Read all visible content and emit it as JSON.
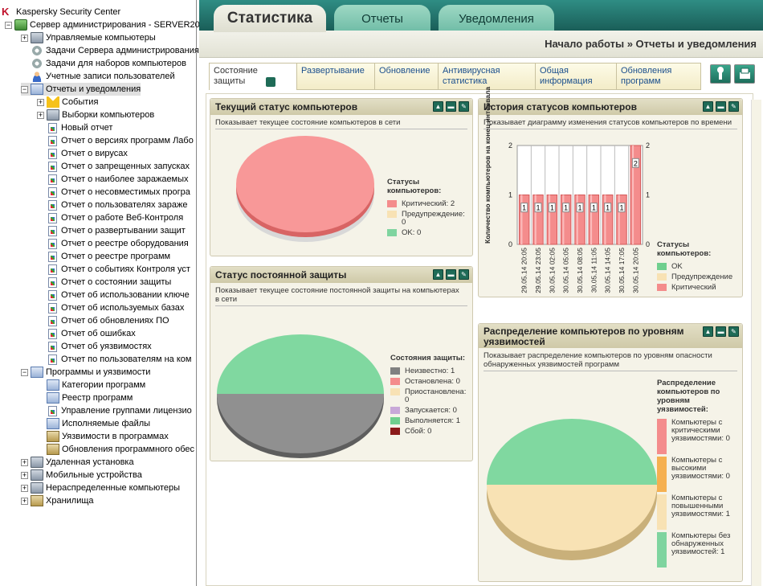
{
  "tree": {
    "app_title": "Kaspersky Security Center",
    "server": "Сервер администрирования - SERVER20",
    "nodes": [
      {
        "label": "Управляемые компьютеры",
        "icon": "computers-icon",
        "exp": "+"
      },
      {
        "label": "Задачи Сервера администрирования",
        "icon": "gear-icon"
      },
      {
        "label": "Задачи для наборов компьютеров",
        "icon": "gear-icon"
      },
      {
        "label": "Учетные записи пользователей",
        "icon": "user-icon"
      },
      {
        "label": "Отчеты и уведомления",
        "icon": "reports-icon",
        "exp": "-"
      },
      {
        "label": "События",
        "icon": "warning-icon",
        "exp": "+"
      },
      {
        "label": "Выборки компьютеров",
        "icon": "computers-icon",
        "exp": "+"
      },
      {
        "label": "Новый отчет",
        "icon": "report-icon"
      },
      {
        "label": "Отчет о версиях программ Лабо",
        "icon": "report-icon"
      },
      {
        "label": "Отчет о вирусах",
        "icon": "report-icon"
      },
      {
        "label": "Отчет о запрещенных запусках",
        "icon": "report-icon"
      },
      {
        "label": "Отчет о наиболее заражаемых",
        "icon": "report-icon"
      },
      {
        "label": "Отчет о несовместимых програ",
        "icon": "report-icon"
      },
      {
        "label": "Отчет о пользователях зараже",
        "icon": "report-icon"
      },
      {
        "label": "Отчет о работе Веб-Контроля",
        "icon": "report-icon"
      },
      {
        "label": "Отчет о развертывании защит",
        "icon": "report-icon"
      },
      {
        "label": "Отчет о реестре оборудования",
        "icon": "report-icon"
      },
      {
        "label": "Отчет о реестре программ",
        "icon": "report-icon"
      },
      {
        "label": "Отчет о событиях Контроля уст",
        "icon": "report-icon"
      },
      {
        "label": "Отчет о состоянии защиты",
        "icon": "report-icon"
      },
      {
        "label": "Отчет об использовании ключе",
        "icon": "report-icon"
      },
      {
        "label": "Отчет об используемых базах",
        "icon": "report-icon"
      },
      {
        "label": "Отчет об обновлениях ПО",
        "icon": "report-icon"
      },
      {
        "label": "Отчет об ошибках",
        "icon": "report-icon"
      },
      {
        "label": "Отчет об уязвимостях",
        "icon": "report-icon"
      },
      {
        "label": "Отчет по пользователям на ком",
        "icon": "report-icon"
      },
      {
        "label": "Программы и уязвимости",
        "icon": "apps-icon",
        "exp": "-"
      },
      {
        "label": "Категории программ",
        "icon": "category-icon"
      },
      {
        "label": "Реестр программ",
        "icon": "registry-icon"
      },
      {
        "label": "Управление группами лицензио",
        "icon": "license-icon"
      },
      {
        "label": "Исполняемые файлы",
        "icon": "exe-icon"
      },
      {
        "label": "Уязвимости в программах",
        "icon": "vuln-icon"
      },
      {
        "label": "Обновления программного обес",
        "icon": "update-icon"
      },
      {
        "label": "Удаленная установка",
        "icon": "install-icon",
        "exp": "+"
      },
      {
        "label": "Мобильные устройства",
        "icon": "mobile-icon",
        "exp": "+"
      },
      {
        "label": "Нераспределенные компьютеры",
        "icon": "computers-icon",
        "exp": "+"
      },
      {
        "label": "Хранилища",
        "icon": "storage-icon",
        "exp": "+"
      }
    ]
  },
  "main": {
    "tabs": [
      "Статистика",
      "Отчеты",
      "Уведомления"
    ],
    "breadcrumb": "Начало работы » Отчеты и уведомления",
    "subtabs": [
      "Состояние защиты",
      "Развертывание",
      "Обновление",
      "Антивирусная статистика",
      "Общая информация",
      "Обновления программ"
    ]
  },
  "panels": {
    "status": {
      "title": "Текущий статус компьютеров",
      "desc": "Показывает текущее состояние компьютеров в сети",
      "legend_title": "Статусы компьютеров:",
      "items": [
        {
          "label": "Критический: 2",
          "color": "#f48c8c"
        },
        {
          "label": "Предупреждение: 0",
          "color": "#f8e2b4"
        },
        {
          "label": "OK: 0",
          "color": "#7fd49f"
        }
      ]
    },
    "rtp": {
      "title": "Статус постоянной защиты",
      "desc": "Показывает текущее состояние постоянной защиты на компьютерах в сети",
      "legend_title": "Состояния защиты:",
      "items": [
        {
          "label": "Неизвестно: 1",
          "color": "#808080"
        },
        {
          "label": "Остановлена: 0",
          "color": "#f48c8c"
        },
        {
          "label": "Приостановлена: 0",
          "color": "#f8e2b4"
        },
        {
          "label": "Запускается: 0",
          "color": "#c8a8d8"
        },
        {
          "label": "Выполняется: 1",
          "color": "#6fcf8e"
        },
        {
          "label": "Сбой: 0",
          "color": "#8b1a1a"
        }
      ]
    },
    "history": {
      "title": "История статусов компьютеров",
      "desc": "Показывает диаграмму изменения статусов компьютеров по времени",
      "legend_title": "Статусы компьютеров:",
      "items": [
        {
          "label": "OK",
          "color": "#6fcf8e"
        },
        {
          "label": "Предупреждение",
          "color": "#f8e2b4"
        },
        {
          "label": "Критический",
          "color": "#f48c8c"
        }
      ]
    },
    "vuln": {
      "title": "Распределение компьютеров по уровням уязвимостей",
      "desc": "Показывает распределение компьютеров по уровням опасности обнаруженных уязвимостей программ",
      "legend_title": "Распределение компьютеров по уровням уязвимостей:",
      "items": [
        {
          "label": "Компьютеры с критическими уязвимостями: 0",
          "color": "#f48c8c"
        },
        {
          "label": "Компьютеры с высокими уязвимостями: 0",
          "color": "#f5b050"
        },
        {
          "label": "Компьютеры с повышенными уязвимостями: 1",
          "color": "#f8e2b4"
        },
        {
          "label": "Компьютеры без обнаруженных уязвимостей: 1",
          "color": "#7fd49f"
        }
      ]
    }
  },
  "chart_data": [
    {
      "type": "pie",
      "slices": [
        {
          "name": "Критический",
          "value": 2
        },
        {
          "name": "Предупреждение",
          "value": 0
        },
        {
          "name": "OK",
          "value": 0
        }
      ]
    },
    {
      "type": "pie",
      "slices": [
        {
          "name": "Неизвестно",
          "value": 1
        },
        {
          "name": "Остановлена",
          "value": 0
        },
        {
          "name": "Приостановлена",
          "value": 0
        },
        {
          "name": "Запускается",
          "value": 0
        },
        {
          "name": "Выполняется",
          "value": 1
        },
        {
          "name": "Сбой",
          "value": 0
        }
      ]
    },
    {
      "type": "bar",
      "ylabel": "Количество компьютеров на конец интервала",
      "ylim": [
        0,
        2
      ],
      "yticks": [
        0,
        1,
        2
      ],
      "categories": [
        "29.05.14 20:05",
        "29.05.14 23:05",
        "30.05.14 02:05",
        "30.05.14 05:05",
        "30.05.14 08:05",
        "30.05.14 11:05",
        "30.05.14 14:05",
        "30.05.14 17:05",
        "30.05.14 20:05"
      ],
      "series": [
        {
          "name": "Критический",
          "values": [
            1,
            1,
            1,
            1,
            1,
            1,
            1,
            1,
            2
          ]
        }
      ]
    },
    {
      "type": "pie",
      "slices": [
        {
          "name": "Критические",
          "value": 0
        },
        {
          "name": "Высокие",
          "value": 0
        },
        {
          "name": "Повышенные",
          "value": 1
        },
        {
          "name": "Без уязвимостей",
          "value": 1
        }
      ]
    }
  ]
}
